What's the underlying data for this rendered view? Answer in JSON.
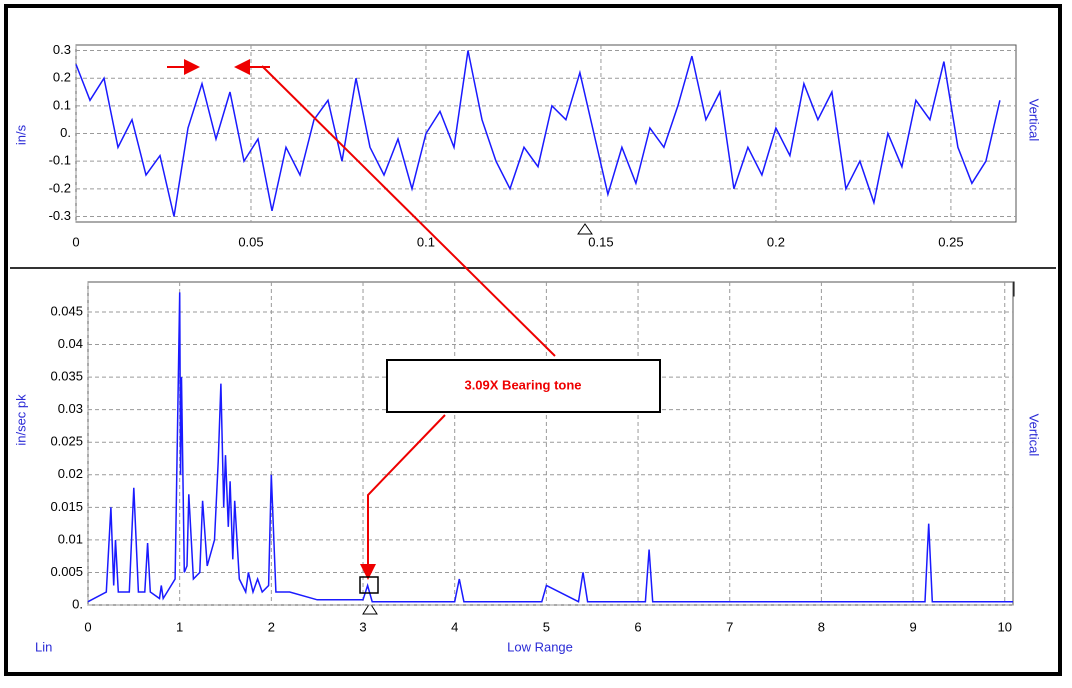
{
  "chart_data": [
    {
      "type": "line",
      "y_label": "in/s",
      "side_label": "Vertical",
      "color": "#1a1aff",
      "x": [
        0,
        0.004,
        0.008,
        0.012,
        0.016,
        0.02,
        0.024,
        0.028,
        0.032,
        0.036,
        0.04,
        0.044,
        0.048,
        0.052,
        0.056,
        0.06,
        0.064,
        0.068,
        0.072,
        0.076,
        0.08,
        0.084,
        0.088,
        0.092,
        0.096,
        0.1,
        0.104,
        0.108,
        0.112,
        0.116,
        0.12,
        0.124,
        0.128,
        0.132,
        0.136,
        0.14,
        0.144,
        0.148,
        0.152,
        0.156,
        0.16,
        0.164,
        0.168,
        0.172,
        0.176,
        0.18,
        0.184,
        0.188,
        0.192,
        0.196,
        0.2,
        0.204,
        0.208,
        0.212,
        0.216,
        0.22,
        0.224,
        0.228,
        0.232,
        0.236,
        0.24,
        0.244,
        0.248,
        0.252,
        0.256,
        0.26,
        0.264
      ],
      "values": [
        0.25,
        0.12,
        0.2,
        -0.05,
        0.05,
        -0.15,
        -0.08,
        -0.3,
        0.02,
        0.18,
        -0.02,
        0.15,
        -0.1,
        -0.02,
        -0.28,
        -0.05,
        -0.15,
        0.05,
        0.12,
        -0.1,
        0.2,
        -0.05,
        -0.15,
        -0.02,
        -0.2,
        0,
        0.08,
        -0.05,
        0.3,
        0.05,
        -0.1,
        -0.2,
        -0.05,
        -0.12,
        0.1,
        0.05,
        0.22,
        0,
        -0.22,
        -0.05,
        -0.18,
        0.02,
        -0.05,
        0.1,
        0.28,
        0.05,
        0.15,
        -0.2,
        -0.05,
        -0.15,
        0.02,
        -0.08,
        0.18,
        0.05,
        0.15,
        -0.2,
        -0.1,
        -0.25,
        0,
        -0.12,
        0.12,
        0.05,
        0.26,
        -0.05,
        -0.18,
        -0.1,
        0.12
      ],
      "xlim": [
        0,
        0.2686
      ],
      "ylim": [
        -0.32,
        0.32
      ],
      "xticks": [
        0,
        0.05,
        0.1,
        0.15,
        0.2,
        0.25
      ],
      "yticks": [
        0.3,
        0.2,
        0.1,
        {
          "value": 0,
          "label": "0."
        },
        -0.1,
        -0.2,
        -0.3
      ],
      "grid": true
    },
    {
      "type": "line",
      "y_label": "in/sec pk",
      "side_label": "Vertical",
      "x_label": "Low Range",
      "scale_label": "Lin",
      "annotation": "3.09X Bearing tone",
      "color": "#1a1aff",
      "x": [
        0,
        0.2,
        0.25,
        0.28,
        0.3,
        0.33,
        0.45,
        0.5,
        0.55,
        0.62,
        0.65,
        0.68,
        0.78,
        0.8,
        0.82,
        0.95,
        1.0,
        1.01,
        1.02,
        1.05,
        1.08,
        1.1,
        1.15,
        1.22,
        1.25,
        1.3,
        1.38,
        1.42,
        1.45,
        1.48,
        1.5,
        1.53,
        1.55,
        1.58,
        1.6,
        1.65,
        1.72,
        1.75,
        1.8,
        1.85,
        1.9,
        1.97,
        2.0,
        2.05,
        2.2,
        2.5,
        3.0,
        3.05,
        3.1,
        4.0,
        4.05,
        4.1,
        4.95,
        5.0,
        5.35,
        5.4,
        5.45,
        6.08,
        6.12,
        6.16,
        9.13,
        9.17,
        9.21,
        10.09
      ],
      "values": [
        0.0005,
        0.002,
        0.015,
        0.003,
        0.01,
        0.002,
        0.002,
        0.018,
        0.002,
        0.002,
        0.0095,
        0.002,
        0.001,
        0.003,
        0.001,
        0.004,
        0.048,
        0.02,
        0.035,
        0.005,
        0.006,
        0.017,
        0.004,
        0.005,
        0.016,
        0.006,
        0.01,
        0.022,
        0.034,
        0.015,
        0.023,
        0.012,
        0.019,
        0.007,
        0.016,
        0.004,
        0.002,
        0.005,
        0.002,
        0.004,
        0.002,
        0.003,
        0.02,
        0.002,
        0.002,
        0.0008,
        0.0008,
        0.003,
        0.0005,
        0.0005,
        0.004,
        0.0005,
        0.0005,
        0.003,
        0.0005,
        0.005,
        0.0005,
        0.0005,
        0.0085,
        0.0005,
        0.0005,
        0.0125,
        0.0005,
        0.0005
      ],
      "xlim": [
        0,
        10.09
      ],
      "ylim": [
        0,
        0.0496
      ],
      "xticks": [
        0,
        1,
        2,
        3,
        4,
        5,
        6,
        7,
        8,
        9,
        10
      ],
      "yticks": [
        {
          "value": 0,
          "label": "0."
        },
        0.005,
        0.01,
        0.015,
        0.02,
        0.025,
        0.03,
        0.035,
        0.04,
        0.045
      ],
      "grid": true
    }
  ]
}
